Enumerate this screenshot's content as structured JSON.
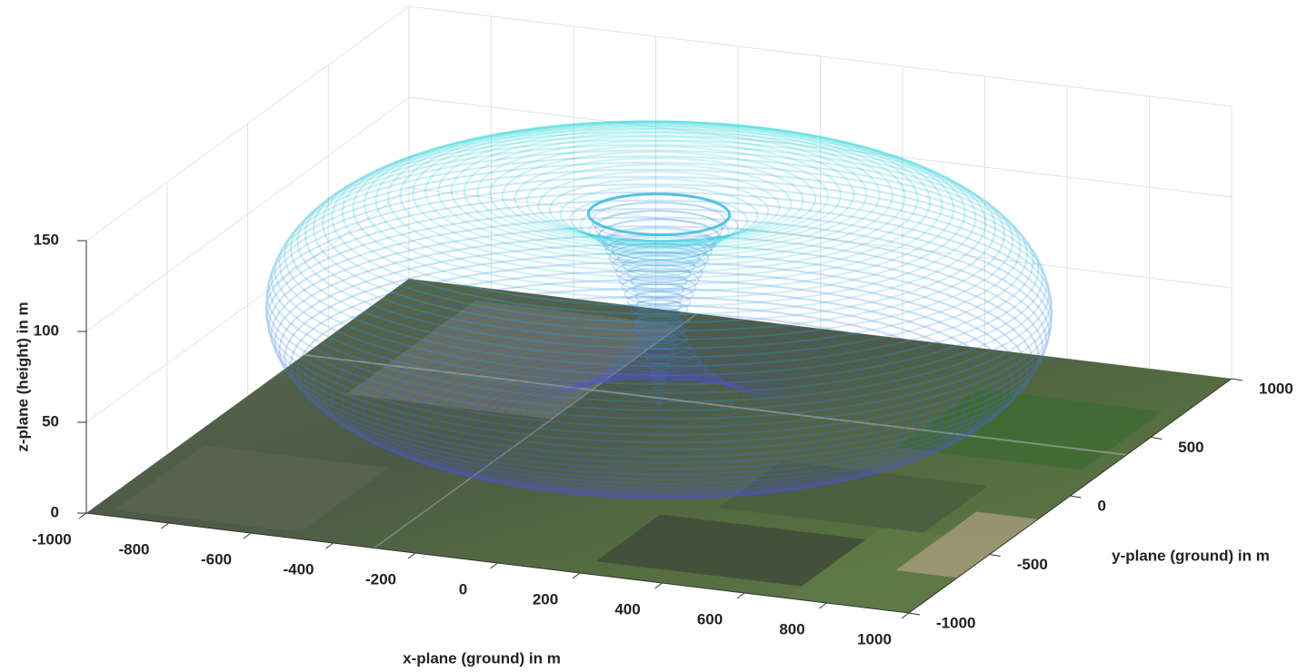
{
  "chart_data": {
    "type": "surface3d",
    "xlabel": "x-plane (ground) in m",
    "ylabel": "y-plane (ground) in m",
    "zlabel": "z-plane (height) in m",
    "xlim": [
      -1000,
      1000
    ],
    "xticks": [
      -1000,
      -800,
      -600,
      -400,
      -200,
      0,
      200,
      400,
      600,
      800,
      1000
    ],
    "ylim": [
      -1000,
      1000
    ],
    "yticks": [
      -1000,
      -500,
      0,
      500,
      1000
    ],
    "zlim": [
      0,
      150
    ],
    "zticks": [
      0,
      50,
      100,
      150
    ],
    "grid": true
  }
}
